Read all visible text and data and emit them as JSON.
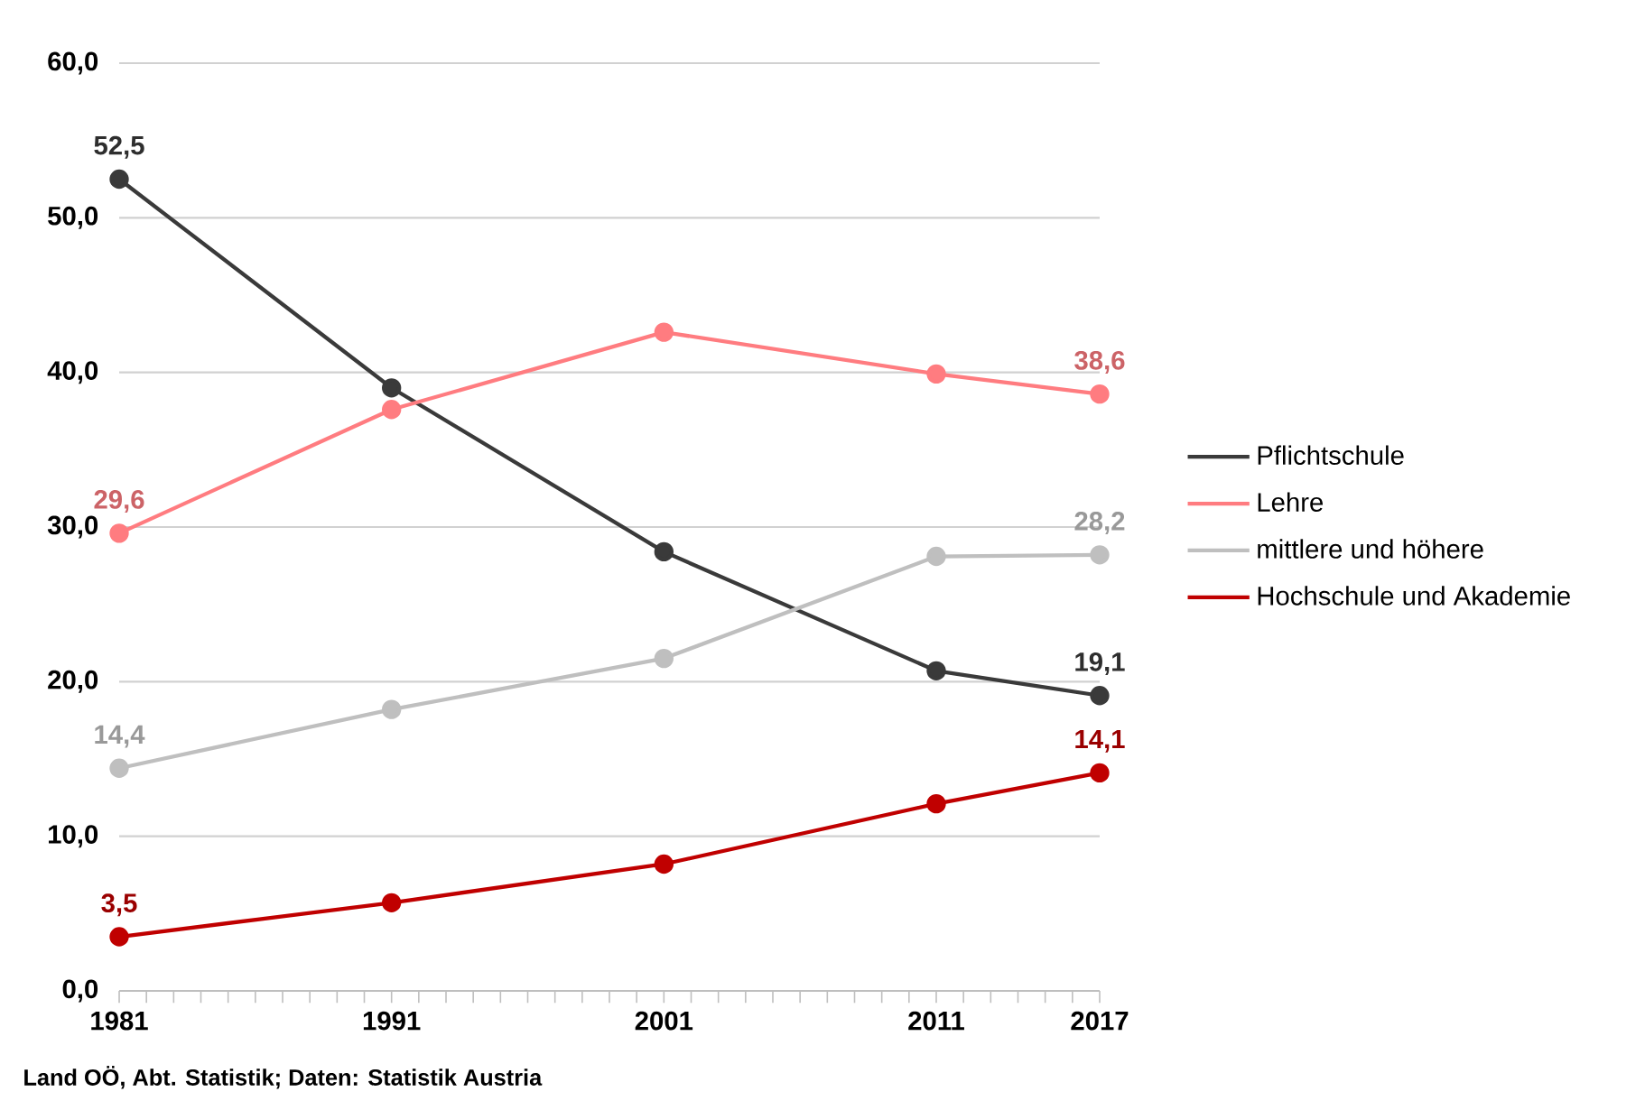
{
  "chart_data": {
    "type": "line",
    "x": [
      1981,
      1991,
      2001,
      2011,
      2017
    ],
    "series": [
      {
        "name": "Pflichtschule",
        "color": "#3a3a3a",
        "values": [
          52.5,
          39.0,
          28.4,
          20.7,
          19.1
        ],
        "value_labels": [
          "52,5",
          null,
          null,
          null,
          "19,1"
        ]
      },
      {
        "name": "Lehre",
        "color": "#ff7c80",
        "values": [
          29.6,
          37.6,
          42.6,
          39.9,
          38.6
        ],
        "value_labels": [
          "29,6",
          null,
          null,
          null,
          "38,6"
        ]
      },
      {
        "name": "mittlere und höhere",
        "color": "#bfbfbf",
        "values": [
          14.4,
          18.2,
          21.5,
          28.1,
          28.2
        ],
        "value_labels": [
          "14,4",
          null,
          null,
          null,
          "28,2"
        ]
      },
      {
        "name": "Hochschule und Akademie",
        "color": "#c00000",
        "values": [
          3.5,
          5.7,
          8.2,
          12.1,
          14.1
        ],
        "value_labels": [
          "3,5",
          null,
          null,
          null,
          "14,1"
        ]
      }
    ],
    "xlim": [
      1981,
      2017
    ],
    "xticks": [
      1981,
      {
        "value": 1982,
        "label": null
      },
      {
        "value": 1983,
        "label": null
      },
      {
        "value": 1984,
        "label": null
      },
      {
        "value": 1985,
        "label": null
      },
      {
        "value": 1986,
        "label": null
      },
      {
        "value": 1987,
        "label": null
      },
      {
        "value": 1988,
        "label": null
      },
      {
        "value": 1989,
        "label": null
      },
      {
        "value": 1990,
        "label": null
      },
      1991,
      {
        "value": 1992,
        "label": null
      },
      {
        "value": 1993,
        "label": null
      },
      {
        "value": 1994,
        "label": null
      },
      {
        "value": 1995,
        "label": null
      },
      {
        "value": 1996,
        "label": null
      },
      {
        "value": 1997,
        "label": null
      },
      {
        "value": 1998,
        "label": null
      },
      {
        "value": 1999,
        "label": null
      },
      {
        "value": 2000,
        "label": null
      },
      2001,
      {
        "value": 2002,
        "label": null
      },
      {
        "value": 2003,
        "label": null
      },
      {
        "value": 2004,
        "label": null
      },
      {
        "value": 2005,
        "label": null
      },
      {
        "value": 2006,
        "label": null
      },
      {
        "value": 2007,
        "label": null
      },
      {
        "value": 2008,
        "label": null
      },
      {
        "value": 2009,
        "label": null
      },
      {
        "value": 2010,
        "label": null
      },
      2011,
      {
        "value": 2012,
        "label": null
      },
      {
        "value": 2013,
        "label": null
      },
      {
        "value": 2014,
        "label": null
      },
      {
        "value": 2015,
        "label": null
      },
      {
        "value": 2016,
        "label": null
      },
      2017
    ],
    "ylim": [
      0,
      60
    ],
    "yticks": [
      {
        "value": 0,
        "label": "0,0"
      },
      {
        "value": 10,
        "label": "10,0"
      },
      {
        "value": 20,
        "label": "20,0"
      },
      {
        "value": 30,
        "label": "30,0"
      },
      {
        "value": 40,
        "label": "40,0"
      },
      {
        "value": 50,
        "label": "50,0"
      },
      {
        "value": 60,
        "label": "60,0"
      }
    ],
    "grid": "y",
    "legend": "right",
    "marker": "circle",
    "line_style": "solid",
    "annotations": [
      "Land OÖ, Abt. Statistik; Daten: Statistik Austria"
    ]
  }
}
